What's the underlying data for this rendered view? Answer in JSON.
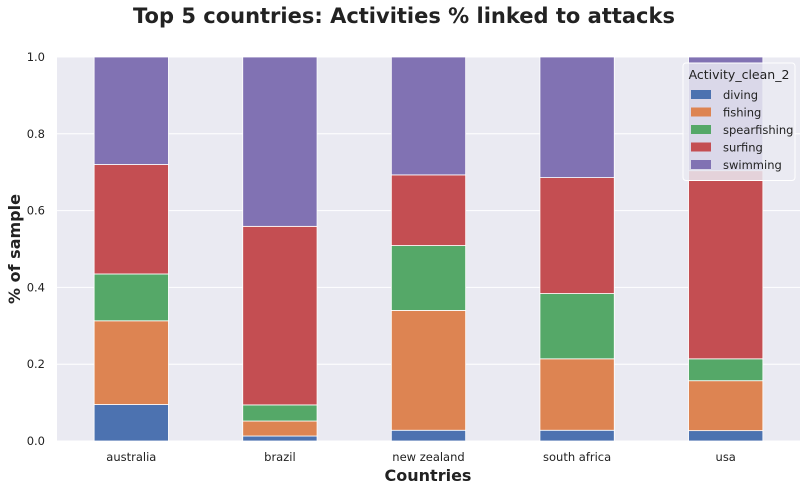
{
  "chart_data": {
    "type": "bar",
    "stacked": true,
    "title": "Top 5 countries: Activities % linked to attacks",
    "xlabel": "Countries",
    "ylabel": "% of sample",
    "ylim": [
      0,
      1
    ],
    "yticks": [
      "0.0",
      "0.2",
      "0.4",
      "0.6",
      "0.8",
      "1.0"
    ],
    "grid": true,
    "categories": [
      "australia",
      "brazil",
      "new zealand",
      "south africa",
      "usa"
    ],
    "series": [
      {
        "name": "diving",
        "color": "#4c72b0",
        "values": [
          0.095,
          0.013,
          0.028,
          0.028,
          0.027
        ]
      },
      {
        "name": "fishing",
        "color": "#dd8452",
        "values": [
          0.218,
          0.039,
          0.312,
          0.186,
          0.13
        ]
      },
      {
        "name": "spearfishing",
        "color": "#55a868",
        "values": [
          0.122,
          0.042,
          0.169,
          0.17,
          0.057
        ]
      },
      {
        "name": "surfing",
        "color": "#c44e52",
        "values": [
          0.285,
          0.465,
          0.184,
          0.302,
          0.49
        ]
      },
      {
        "name": "swimming",
        "color": "#8172b3",
        "values": [
          0.28,
          0.441,
          0.307,
          0.314,
          0.296
        ]
      }
    ],
    "legend": {
      "title": "Activity_clean_2",
      "position": "top-right"
    }
  }
}
